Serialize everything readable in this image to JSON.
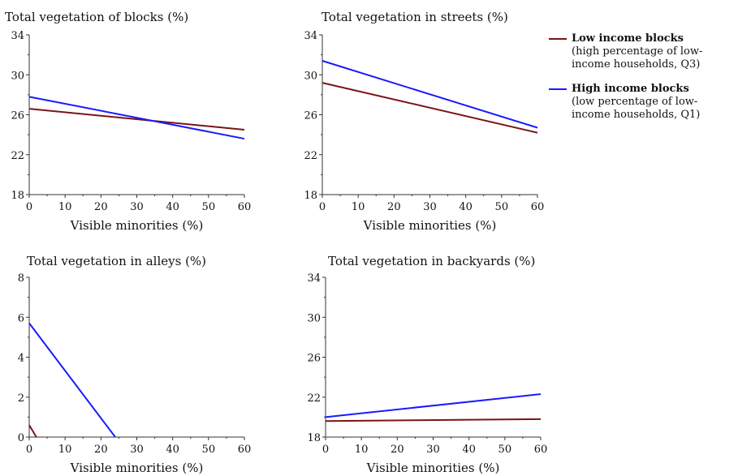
{
  "chart_data": [
    {
      "type": "line",
      "title": "Total vegetation of blocks (%)",
      "xlabel": "Visible minorities (%)",
      "ylabel": "",
      "xlim": [
        0,
        60
      ],
      "ylim": [
        18,
        34
      ],
      "xticks": [
        0,
        10,
        20,
        30,
        40,
        50,
        60
      ],
      "yticks": [
        18,
        22,
        26,
        30,
        34
      ],
      "series": [
        {
          "legend_ref": "low",
          "x": [
            0,
            60
          ],
          "y": [
            26.6,
            24.5
          ]
        },
        {
          "legend_ref": "high",
          "x": [
            0,
            60
          ],
          "y": [
            27.8,
            23.6
          ]
        }
      ]
    },
    {
      "type": "line",
      "title": "Total vegetation in streets (%)",
      "xlabel": "Visible minorities (%)",
      "ylabel": "",
      "xlim": [
        0,
        60
      ],
      "ylim": [
        18,
        34
      ],
      "xticks": [
        0,
        10,
        20,
        30,
        40,
        50,
        60
      ],
      "yticks": [
        18,
        22,
        26,
        30,
        34
      ],
      "series": [
        {
          "legend_ref": "low",
          "x": [
            0,
            60
          ],
          "y": [
            29.2,
            24.2
          ]
        },
        {
          "legend_ref": "high",
          "x": [
            0,
            60
          ],
          "y": [
            31.4,
            24.7
          ]
        }
      ]
    },
    {
      "type": "line",
      "title": "Total vegetation in alleys (%)",
      "xlabel": "Visible minorities (%)",
      "ylabel": "",
      "xlim": [
        0,
        60
      ],
      "ylim": [
        0,
        8
      ],
      "xticks": [
        0,
        10,
        20,
        30,
        40,
        50,
        60
      ],
      "yticks": [
        0,
        2,
        4,
        6,
        8
      ],
      "series": [
        {
          "legend_ref": "low",
          "x": [
            0,
            2
          ],
          "y": [
            0.6,
            0.0
          ]
        },
        {
          "legend_ref": "high",
          "x": [
            0,
            24
          ],
          "y": [
            5.7,
            0.0
          ]
        }
      ]
    },
    {
      "type": "line",
      "title": "Total vegetation in backyards (%)",
      "xlabel": "Visible minorities (%)",
      "ylabel": "",
      "xlim": [
        0,
        60
      ],
      "ylim": [
        18,
        34
      ],
      "xticks": [
        0,
        10,
        20,
        30,
        40,
        50,
        60
      ],
      "yticks": [
        18,
        22,
        26,
        30,
        34
      ],
      "series": [
        {
          "legend_ref": "low",
          "x": [
            0,
            60
          ],
          "y": [
            19.6,
            19.8
          ]
        },
        {
          "legend_ref": "high",
          "x": [
            0,
            60
          ],
          "y": [
            20.0,
            22.3
          ]
        }
      ]
    }
  ],
  "legend": {
    "placement": "top-right",
    "entries": [
      {
        "key": "low",
        "name": "Low income blocks",
        "description": "(high percentage of low-income households, Q3)",
        "color": "#7a1416"
      },
      {
        "key": "high",
        "name": "High income blocks",
        "description": "(low percentage of low-income households, Q1)",
        "color": "#1a1aff"
      }
    ]
  }
}
